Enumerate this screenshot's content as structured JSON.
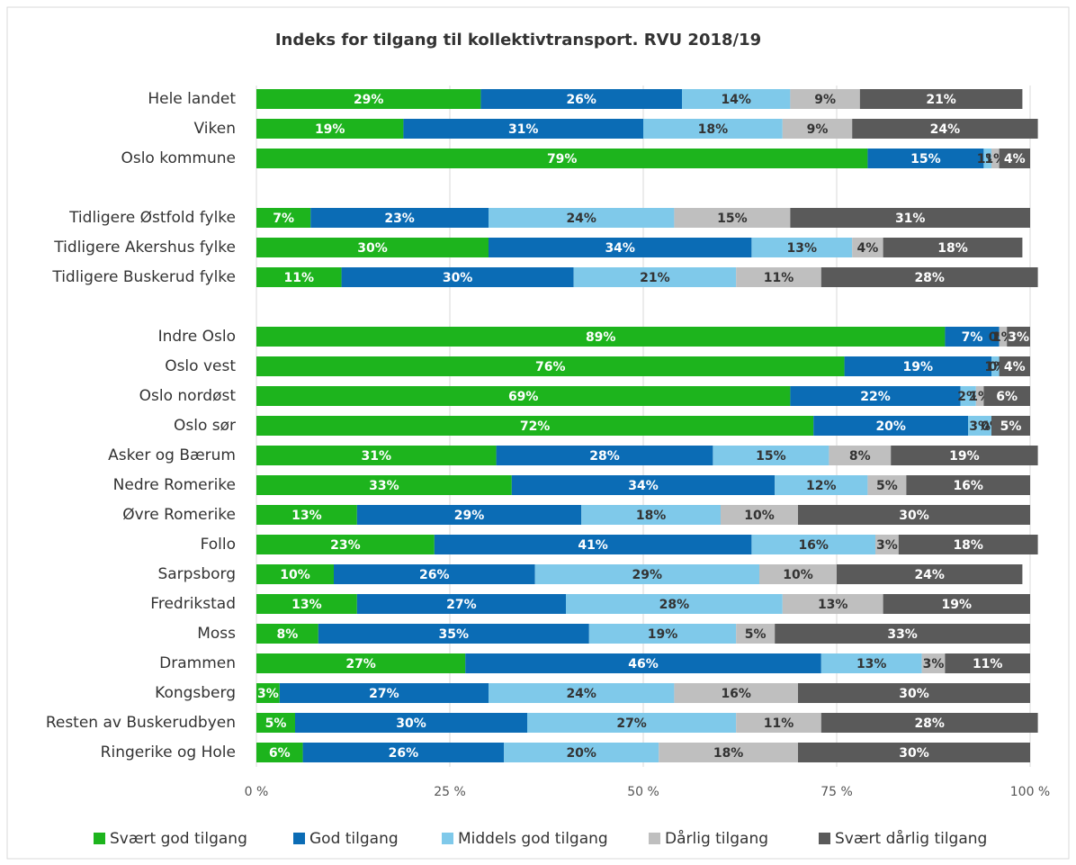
{
  "chart_data": {
    "type": "stacked_barh",
    "title": "Indeks for tilgang til kollektivtransport. RVU 2018/19",
    "categories": [
      "Hele landet",
      "Viken",
      "Oslo kommune",
      null,
      "Tidligere Østfold fylke",
      "Tidligere Akershus fylke",
      "Tidligere Buskerud fylke",
      null,
      "Indre Oslo",
      "Oslo vest",
      "Oslo nordøst",
      "Oslo sør",
      "Asker og Bærum",
      "Nedre Romerike",
      "Øvre Romerike",
      "Follo",
      "Sarpsborg",
      "Fredrikstad",
      "Moss",
      "Drammen",
      "Kongsberg",
      "Resten av Buskerudbyen",
      "Ringerike og Hole"
    ],
    "series": [
      {
        "name": "Svært god tilgang",
        "color": "#1db41d",
        "values": [
          29,
          19,
          79,
          null,
          7,
          30,
          11,
          null,
          89,
          76,
          69,
          72,
          31,
          33,
          13,
          23,
          10,
          13,
          8,
          27,
          3,
          5,
          6
        ],
        "value_labels": [
          "29%",
          "19%",
          "79%",
          null,
          "7%",
          "30%",
          "11%",
          null,
          "89%",
          "76%",
          "69%",
          "72%",
          "31%",
          "33%",
          "13%",
          "23%",
          "10%",
          "13%",
          "8%",
          "27%",
          "3%",
          "5%",
          "6%"
        ]
      },
      {
        "name": "God tilgang",
        "color": "#0b6cb5",
        "values": [
          26,
          31,
          15,
          null,
          23,
          34,
          30,
          null,
          7,
          19,
          22,
          20,
          28,
          34,
          29,
          41,
          26,
          27,
          35,
          46,
          27,
          30,
          26
        ],
        "value_labels": [
          "26%",
          "31%",
          "15%",
          null,
          "23%",
          "34%",
          "30%",
          null,
          "7%",
          "19%",
          "22%",
          "20%",
          "28%",
          "34%",
          "29%",
          "41%",
          "26%",
          "27%",
          "35%",
          "46%",
          "27%",
          "30%",
          "26%"
        ]
      },
      {
        "name": "Middels god tilgang",
        "color": "#7fc9ea",
        "values": [
          14,
          18,
          1,
          null,
          24,
          13,
          21,
          null,
          0,
          1,
          2,
          3,
          15,
          12,
          18,
          16,
          29,
          28,
          19,
          13,
          24,
          27,
          20
        ],
        "value_labels": [
          "14%",
          "18%",
          "1%",
          null,
          "24%",
          "13%",
          "21%",
          null,
          "0%",
          "1%",
          "2%",
          "3%",
          "15%",
          "12%",
          "18%",
          "16%",
          "29%",
          "28%",
          "19%",
          "13%",
          "24%",
          "27%",
          "20%"
        ]
      },
      {
        "name": "Dårlig tilgang",
        "color": "#bfbfbf",
        "values": [
          9,
          9,
          1,
          null,
          15,
          4,
          11,
          null,
          1,
          0,
          1,
          0,
          8,
          5,
          10,
          3,
          10,
          13,
          5,
          3,
          16,
          11,
          18
        ],
        "value_labels": [
          "9%",
          "9%",
          "1%",
          null,
          "15%",
          "4%",
          "11%",
          null,
          "1%",
          "0%",
          "1%",
          "0%",
          "8%",
          "5%",
          "10%",
          "3%",
          "10%",
          "13%",
          "5%",
          "3%",
          "16%",
          "11%",
          "18%"
        ]
      },
      {
        "name": "Svært dårlig tilgang",
        "color": "#5a5a5a",
        "values": [
          21,
          24,
          4,
          null,
          31,
          18,
          28,
          null,
          3,
          4,
          6,
          5,
          19,
          16,
          30,
          18,
          24,
          19,
          33,
          11,
          30,
          28,
          30
        ],
        "value_labels": [
          "21%",
          "24%",
          "4%",
          null,
          "31%",
          "18%",
          "28%",
          null,
          "3%",
          "4%",
          "6%",
          "5%",
          "19%",
          "16%",
          "30%",
          "18%",
          "24%",
          "19%",
          "33%",
          "11%",
          "30%",
          "28%",
          "30%"
        ]
      }
    ],
    "xlim": [
      0,
      100
    ],
    "xticks": [
      {
        "value": 0,
        "label": "0 %"
      },
      {
        "value": 25,
        "label": "25 %"
      },
      {
        "value": 50,
        "label": "50 %"
      },
      {
        "value": 75,
        "label": "75 %"
      },
      {
        "value": 100,
        "label": "100 %"
      }
    ],
    "grid": true,
    "legend": "bottom"
  }
}
